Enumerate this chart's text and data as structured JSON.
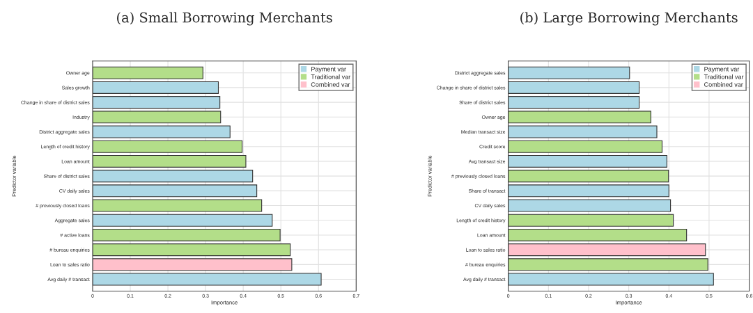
{
  "chart_data": [
    {
      "type": "bar",
      "orientation": "horizontal",
      "stacked": true,
      "title": "(a) Small Borrowing Merchants",
      "xlabel": "Importance",
      "ylabel": "Predictor variable",
      "categories": [
        "Owner age",
        "Sales growth",
        "Change in share of district sales",
        "Industry",
        "District aggregate sales",
        "Length of credit history",
        "Loan amount",
        "Share of district sales",
        "CV daily sales",
        "# previously closed loans",
        "Aggregate sales",
        "# active loans",
        "# bureau enquiries",
        "Loan to sales ratio",
        "Avg daily # transact"
      ],
      "series": [
        {
          "name": "Payment var",
          "color": "#add8e6",
          "values": [
            null,
            0.334,
            0.338,
            null,
            0.365,
            null,
            null,
            0.425,
            0.436,
            null,
            0.477,
            null,
            null,
            null,
            0.607
          ]
        },
        {
          "name": "Traditional var",
          "color": "#b3de89",
          "values": [
            0.293,
            null,
            null,
            0.34,
            null,
            0.397,
            0.407,
            null,
            null,
            0.449,
            null,
            0.498,
            0.525,
            null,
            null
          ]
        },
        {
          "name": "Combined var",
          "color": "#ffc0cb",
          "values": [
            null,
            null,
            null,
            null,
            null,
            null,
            null,
            null,
            null,
            null,
            null,
            null,
            null,
            0.529,
            null
          ]
        }
      ],
      "xlim": [
        0,
        0.7
      ],
      "xticks": [
        0,
        0.1,
        0.2,
        0.3,
        0.4,
        0.5,
        0.6,
        0.7
      ],
      "grid": true,
      "legend": "top right"
    },
    {
      "type": "bar",
      "orientation": "horizontal",
      "stacked": true,
      "title": "(b) Large Borrowing Merchants",
      "xlabel": "Importance",
      "ylabel": "Predictor variable",
      "categories": [
        "District aggregate sales",
        "Change in share of district sales",
        "Share of district sales",
        "Owner age",
        "Median transact size",
        "Credit score",
        "Avg transact size",
        "# previously closed loans",
        "Share of transact",
        "CV daily sales",
        "Length of credit history",
        "Loan amount",
        "Loan to sales ratio",
        "# bureau enquiries",
        "Avg daily # transact"
      ],
      "series": [
        {
          "name": "Payment var",
          "color": "#add8e6",
          "values": [
            0.302,
            0.326,
            0.326,
            null,
            0.37,
            null,
            0.395,
            null,
            0.4,
            0.404,
            null,
            null,
            null,
            null,
            0.511
          ]
        },
        {
          "name": "Traditional var",
          "color": "#b3de89",
          "values": [
            null,
            null,
            null,
            0.355,
            null,
            0.383,
            null,
            0.399,
            null,
            null,
            0.411,
            0.444,
            null,
            0.497,
            null
          ]
        },
        {
          "name": "Combined var",
          "color": "#ffc0cb",
          "values": [
            null,
            null,
            null,
            null,
            null,
            null,
            null,
            null,
            null,
            null,
            null,
            null,
            0.491,
            null,
            null
          ]
        }
      ],
      "xlim": [
        0,
        0.6
      ],
      "xticks": [
        0,
        0.1,
        0.2,
        0.3,
        0.4,
        0.5,
        0.6
      ],
      "grid": true,
      "legend": "top right"
    }
  ]
}
